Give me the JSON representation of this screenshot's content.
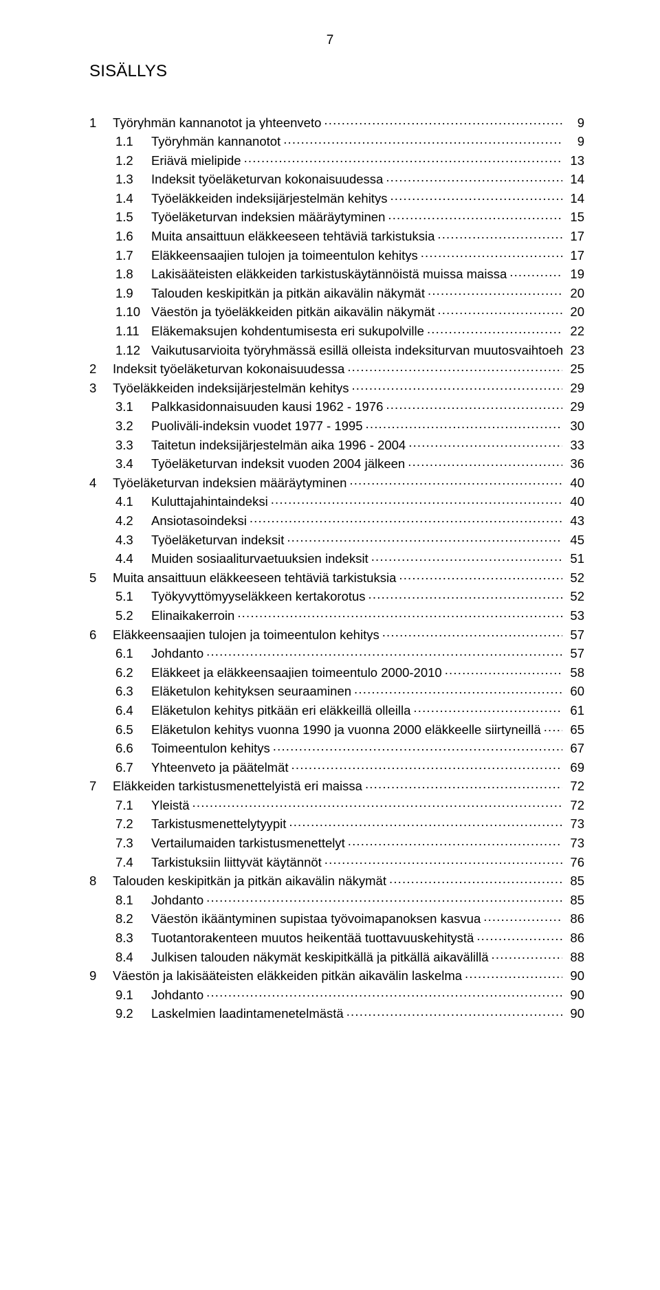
{
  "page_number": "7",
  "title": "SISÄLLYS",
  "colors": {
    "text": "#000000",
    "background": "#ffffff",
    "leader": "#000000"
  },
  "typography": {
    "body_font": "Arial, Helvetica, sans-serif",
    "title_fontsize_pt": 18,
    "body_fontsize_pt": 14,
    "page_number_fontsize_pt": 14
  },
  "toc": [
    {
      "level": 0,
      "num": "1",
      "label": "Työryhmän kannanotot ja yhteenveto",
      "page": "9"
    },
    {
      "level": 1,
      "num": "1.1",
      "label": "Työryhmän kannanotot",
      "page": "9"
    },
    {
      "level": 1,
      "num": "1.2",
      "label": "Eriävä mielipide",
      "page": "13"
    },
    {
      "level": 1,
      "num": "1.3",
      "label": "Indeksit työeläketurvan kokonaisuudessa",
      "page": "14"
    },
    {
      "level": 1,
      "num": "1.4",
      "label": "Työeläkkeiden indeksijärjestelmän kehitys",
      "page": "14"
    },
    {
      "level": 1,
      "num": "1.5",
      "label": "Työeläketurvan indeksien määräytyminen",
      "page": "15"
    },
    {
      "level": 1,
      "num": "1.6",
      "label": "Muita ansaittuun eläkkeeseen tehtäviä tarkistuksia",
      "page": "17"
    },
    {
      "level": 1,
      "num": "1.7",
      "label": "Eläkkeensaajien tulojen ja toimeentulon kehitys",
      "page": "17"
    },
    {
      "level": 1,
      "num": "1.8",
      "label": "Lakisääteisten eläkkeiden tarkistuskäytännöistä muissa maissa",
      "page": "19"
    },
    {
      "level": 1,
      "num": "1.9",
      "label": "Talouden keskipitkän ja pitkän aikavälin näkymät",
      "page": "20"
    },
    {
      "level": 1,
      "num": "1.10",
      "label": "Väestön ja työeläkkeiden pitkän aikavälin näkymät",
      "page": "20"
    },
    {
      "level": 1,
      "num": "1.11",
      "label": "Eläkemaksujen kohdentumisesta eri sukupolville",
      "page": "22"
    },
    {
      "level": 1,
      "num": "1.12",
      "label": "Vaikutusarvioita työryhmässä esillä olleista indeksiturvan muutosvaihtoehdoista",
      "page": "23"
    },
    {
      "level": 0,
      "num": "2",
      "label": "Indeksit työeläketurvan kokonaisuudessa",
      "page": "25"
    },
    {
      "level": 0,
      "num": "3",
      "label": "Työeläkkeiden indeksijärjestelmän kehitys",
      "page": "29"
    },
    {
      "level": 1,
      "num": "3.1",
      "label": "Palkkasidonnaisuuden kausi 1962 - 1976",
      "page": "29"
    },
    {
      "level": 1,
      "num": "3.2",
      "label": "Puoliväli-indeksin vuodet 1977 - 1995",
      "page": "30"
    },
    {
      "level": 1,
      "num": "3.3",
      "label": "Taitetun indeksijärjestelmän aika 1996 - 2004",
      "page": "33"
    },
    {
      "level": 1,
      "num": "3.4",
      "label": "Työeläketurvan indeksit vuoden 2004 jälkeen",
      "page": "36"
    },
    {
      "level": 0,
      "num": "4",
      "label": "Työeläketurvan indeksien määräytyminen",
      "page": "40"
    },
    {
      "level": 1,
      "num": "4.1",
      "label": "Kuluttajahintaindeksi",
      "page": "40"
    },
    {
      "level": 1,
      "num": "4.2",
      "label": "Ansiotasoindeksi",
      "page": "43"
    },
    {
      "level": 1,
      "num": "4.3",
      "label": "Työeläketurvan indeksit",
      "page": "45"
    },
    {
      "level": 1,
      "num": "4.4",
      "label": "Muiden sosiaaliturvaetuuksien indeksit",
      "page": "51"
    },
    {
      "level": 0,
      "num": "5",
      "label": "Muita ansaittuun eläkkeeseen tehtäviä tarkistuksia",
      "page": "52"
    },
    {
      "level": 1,
      "num": "5.1",
      "label": "Työkyvyttömyyseläkkeen kertakorotus",
      "page": "52"
    },
    {
      "level": 1,
      "num": "5.2",
      "label": "Elinaikakerroin",
      "page": "53"
    },
    {
      "level": 0,
      "num": "6",
      "label": "Eläkkeensaajien tulojen ja toimeentulon kehitys",
      "page": "57"
    },
    {
      "level": 1,
      "num": "6.1",
      "label": "Johdanto",
      "page": "57"
    },
    {
      "level": 1,
      "num": "6.2",
      "label": "Eläkkeet ja eläkkeensaajien toimeentulo 2000-2010",
      "page": "58"
    },
    {
      "level": 1,
      "num": "6.3",
      "label": "Eläketulon kehityksen seuraaminen",
      "page": "60"
    },
    {
      "level": 1,
      "num": "6.4",
      "label": "Eläketulon kehitys pitkään eri eläkkeillä olleilla",
      "page": "61"
    },
    {
      "level": 1,
      "num": "6.5",
      "label": "Eläketulon kehitys vuonna 1990 ja vuonna 2000 eläkkeelle siirtyneillä",
      "page": "65"
    },
    {
      "level": 1,
      "num": "6.6",
      "label": "Toimeentulon kehitys",
      "page": "67"
    },
    {
      "level": 1,
      "num": "6.7",
      "label": "Yhteenveto ja päätelmät",
      "page": "69"
    },
    {
      "level": 0,
      "num": "7",
      "label": "Eläkkeiden tarkistusmenettelyistä eri maissa",
      "page": "72"
    },
    {
      "level": 1,
      "num": "7.1",
      "label": "Yleistä",
      "page": "72"
    },
    {
      "level": 1,
      "num": "7.2",
      "label": "Tarkistusmenettelytyypit",
      "page": "73"
    },
    {
      "level": 1,
      "num": "7.3",
      "label": "Vertailumaiden tarkistusmenettelyt",
      "page": "73"
    },
    {
      "level": 1,
      "num": "7.4",
      "label": "Tarkistuksiin liittyvät käytännöt",
      "page": "76"
    },
    {
      "level": 0,
      "num": "8",
      "label": "Talouden keskipitkän ja pitkän aikavälin näkymät",
      "page": "85"
    },
    {
      "level": 1,
      "num": "8.1",
      "label": "Johdanto",
      "page": "85"
    },
    {
      "level": 1,
      "num": "8.2",
      "label": "Väestön ikääntyminen supistaa työvoimapanoksen kasvua",
      "page": "86"
    },
    {
      "level": 1,
      "num": "8.3",
      "label": "Tuotantorakenteen muutos heikentää tuottavuuskehitystä",
      "page": "86"
    },
    {
      "level": 1,
      "num": "8.4",
      "label": "Julkisen talouden näkymät keskipitkällä ja pitkällä aikavälillä",
      "page": "88"
    },
    {
      "level": 0,
      "num": "9",
      "label": "Väestön ja lakisääteisten eläkkeiden pitkän aikavälin laskelma",
      "page": "90"
    },
    {
      "level": 1,
      "num": "9.1",
      "label": "Johdanto",
      "page": "90"
    },
    {
      "level": 1,
      "num": "9.2",
      "label": "Laskelmien laadintamenetelmästä",
      "page": "90"
    }
  ]
}
